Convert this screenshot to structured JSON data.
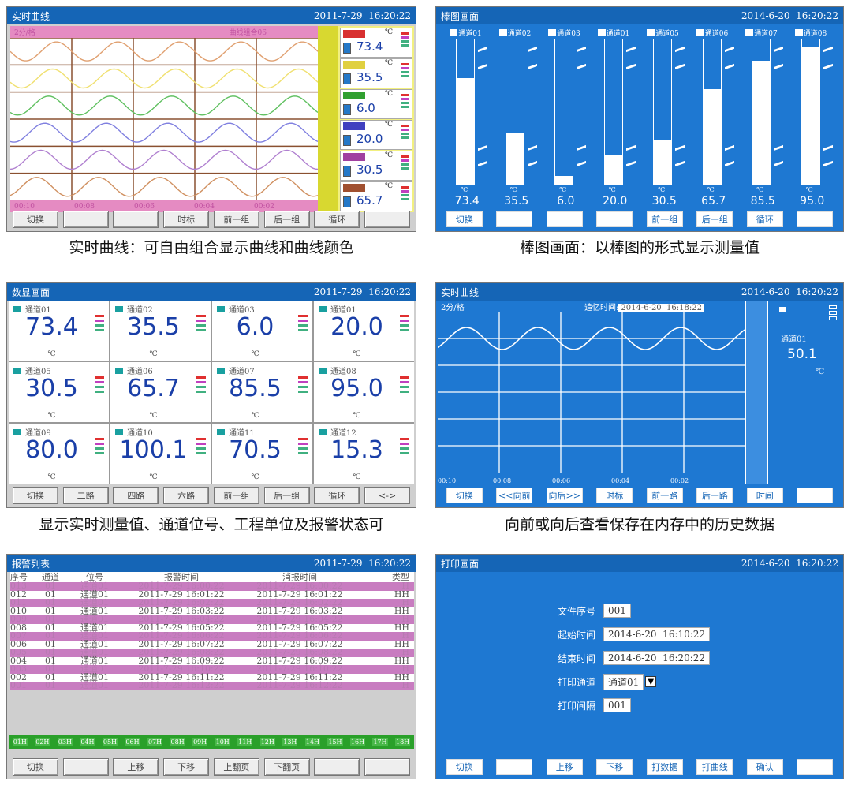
{
  "panel1": {
    "title": "实时曲线",
    "datetime": "2011-7-29  16:20:22",
    "top_left": "2分/格",
    "top_right": "曲线组合06",
    "bottom_ticks": [
      "00:10",
      "00:08",
      "00:06",
      "00:04",
      "00:02"
    ],
    "channels": [
      {
        "value": "73.4",
        "unit": "℃",
        "color": "#d83030"
      },
      {
        "value": "35.5",
        "unit": "℃",
        "color": "#e0d040"
      },
      {
        "value": "6.0",
        "unit": "℃",
        "color": "#30a030"
      },
      {
        "value": "20.0",
        "unit": "℃",
        "color": "#4040c0"
      },
      {
        "value": "30.5",
        "unit": "℃",
        "color": "#a040a0"
      },
      {
        "value": "65.7",
        "unit": "℃",
        "color": "#a05030"
      }
    ],
    "curve_colors": [
      "#e0a070",
      "#f0e070",
      "#60c060",
      "#8080e0",
      "#b080d0",
      "#d09060"
    ],
    "buttons": [
      "切换",
      "",
      "",
      "时标",
      "前一组",
      "后一组",
      "循环",
      ""
    ],
    "caption": "实时曲线：可自由组合显示曲线和曲线颜色"
  },
  "panel2": {
    "title": "棒图画面",
    "datetime": "2014-6-20  16:20:22",
    "bars": [
      {
        "label": "通道01",
        "value": "73.4",
        "level": 0.734
      },
      {
        "label": "通道02",
        "value": "35.5",
        "level": 0.355
      },
      {
        "label": "通道03",
        "value": "6.0",
        "level": 0.06
      },
      {
        "label": "通道01",
        "value": "20.0",
        "level": 0.2
      },
      {
        "label": "通道05",
        "value": "30.5",
        "level": 0.305
      },
      {
        "label": "通道06",
        "value": "65.7",
        "level": 0.657
      },
      {
        "label": "通道07",
        "value": "85.5",
        "level": 0.855
      },
      {
        "label": "通道08",
        "value": "95.0",
        "level": 0.95
      }
    ],
    "unit": "℃",
    "buttons": [
      "切换",
      "",
      "",
      "",
      "前一组",
      "后一组",
      "循环",
      ""
    ],
    "caption": "棒图画面：以棒图的形式显示测量值"
  },
  "panel3": {
    "title": "数显画面",
    "datetime": "2011-7-29  16:20:22",
    "cells": [
      {
        "name": "通道01",
        "value": "73.4"
      },
      {
        "name": "通道02",
        "value": "35.5"
      },
      {
        "name": "通道03",
        "value": "6.0"
      },
      {
        "name": "通道01",
        "value": "20.0"
      },
      {
        "name": "通道05",
        "value": "30.5"
      },
      {
        "name": "通道06",
        "value": "65.7"
      },
      {
        "name": "通道07",
        "value": "85.5"
      },
      {
        "name": "通道08",
        "value": "95.0"
      },
      {
        "name": "通道09",
        "value": "80.0"
      },
      {
        "name": "通道10",
        "value": "100.1"
      },
      {
        "name": "通道11",
        "value": "70.5"
      },
      {
        "name": "通道12",
        "value": "15.3"
      }
    ],
    "unit": "℃",
    "buttons": [
      "切换",
      "二路",
      "四路",
      "六路",
      "前一组",
      "后一组",
      "循环",
      "<->"
    ],
    "caption": "显示实时测量值、通道位号、工程单位及报警状态可"
  },
  "panel4": {
    "title": "实时曲线",
    "datetime": "2014-6-20  16:20:22",
    "scale_label": "2分/格",
    "recall_label": "追忆时间:",
    "recall_value": "2014-6-20  16:18:22",
    "ticks": [
      "00:10",
      "00:08",
      "00:06",
      "00:04",
      "00:02"
    ],
    "channel_name": "通道01",
    "channel_value": "50.1",
    "unit": "℃",
    "buttons": [
      "切换",
      "<<向前",
      "向后>>",
      "时标",
      "前一路",
      "后一路",
      "时间",
      ""
    ],
    "caption": "向前或向后查看保存在内存中的历史数据"
  },
  "panel5": {
    "title": "报警列表",
    "datetime": "2011-7-29  16:20:22",
    "headers": [
      "序号",
      "通道",
      "位号",
      "报警时间",
      "消报时间",
      "类型"
    ],
    "rows": [
      {
        "n": "013",
        "ch": "01",
        "tag": "通道01",
        "t1": "2011-7-29 16:00:22",
        "t2": "2011-7-29 16:00:22",
        "type": "H",
        "style": "pk"
      },
      {
        "n": "012",
        "ch": "01",
        "tag": "通道01",
        "t1": "2011-7-29 16:01:22",
        "t2": "2011-7-29 16:01:22",
        "type": "HH",
        "style": "wt"
      },
      {
        "n": "011",
        "ch": "01",
        "tag": "通道01",
        "t1": "2011-7-29 16:02:22",
        "t2": "2011-7-29 16:02:22",
        "type": "H",
        "style": "pk"
      },
      {
        "n": "010",
        "ch": "01",
        "tag": "通道01",
        "t1": "2011-7-29 16:03:22",
        "t2": "2011-7-29 16:03:22",
        "type": "HH",
        "style": "wt"
      },
      {
        "n": "009",
        "ch": "01",
        "tag": "通道01",
        "t1": "2011-7-29 16:04:22",
        "t2": "2011-7-29 16:04:22",
        "type": "H",
        "style": "pk"
      },
      {
        "n": "008",
        "ch": "01",
        "tag": "通道01",
        "t1": "2011-7-29 16:05:22",
        "t2": "2011-7-29 16:05:22",
        "type": "HH",
        "style": "wt"
      },
      {
        "n": "007",
        "ch": "01",
        "tag": "通道01",
        "t1": "2011-7-29 16:06:22",
        "t2": "2011-7-29 16:06:22",
        "type": "H",
        "style": "pk"
      },
      {
        "n": "006",
        "ch": "01",
        "tag": "通道01",
        "t1": "2011-7-29 16:07:22",
        "t2": "2011-7-29 16:07:22",
        "type": "HH",
        "style": "wt"
      },
      {
        "n": "005",
        "ch": "01",
        "tag": "通道01",
        "t1": "2011-7-29 16:08:22",
        "t2": "2011-7-29 16:08:22",
        "type": "H",
        "style": "pk"
      },
      {
        "n": "004",
        "ch": "01",
        "tag": "通道01",
        "t1": "2011-7-29 16:09:22",
        "t2": "2011-7-29 16:09:22",
        "type": "HH",
        "style": "wt"
      },
      {
        "n": "003",
        "ch": "01",
        "tag": "通道01",
        "t1": "2011-7-29 16:10:22",
        "t2": "2011-7-29 16:10:22",
        "type": "H",
        "style": "pk"
      },
      {
        "n": "002",
        "ch": "01",
        "tag": "通道01",
        "t1": "2011-7-29 16:11:22",
        "t2": "2011-7-29 16:11:22",
        "type": "HH",
        "style": "wt"
      },
      {
        "n": "001",
        "ch": "01",
        "tag": "通道01",
        "t1": "2011-7-29 16:12:22",
        "t2": "2011-7-29 16:12:22",
        "type": "H",
        "style": "pk"
      }
    ],
    "strip": [
      "01H",
      "02H",
      "03H",
      "04H",
      "05H",
      "06H",
      "07H",
      "08H",
      "09H",
      "10H",
      "11H",
      "12H",
      "13H",
      "14H",
      "15H",
      "16H",
      "17H",
      "18H"
    ],
    "buttons": [
      "切换",
      "",
      "上移",
      "下移",
      "上翻页",
      "下翻页",
      "",
      ""
    ]
  },
  "panel6": {
    "title": "打印画面",
    "datetime": "2014-6-20  16:20:22",
    "fields": [
      {
        "label": "文件序号",
        "value": "001"
      },
      {
        "label": "起始时间",
        "value": "2014-6-20  16:10:22"
      },
      {
        "label": "结束时间",
        "value": "2014-6-20  16:20:22"
      },
      {
        "label": "打印通道",
        "value": "通道01"
      },
      {
        "label": "打印间隔",
        "value": "001"
      }
    ],
    "dropdown_glyph": "▼",
    "buttons": [
      "切换",
      "",
      "上移",
      "下移",
      "打数据",
      "打曲线",
      "确认",
      ""
    ]
  }
}
